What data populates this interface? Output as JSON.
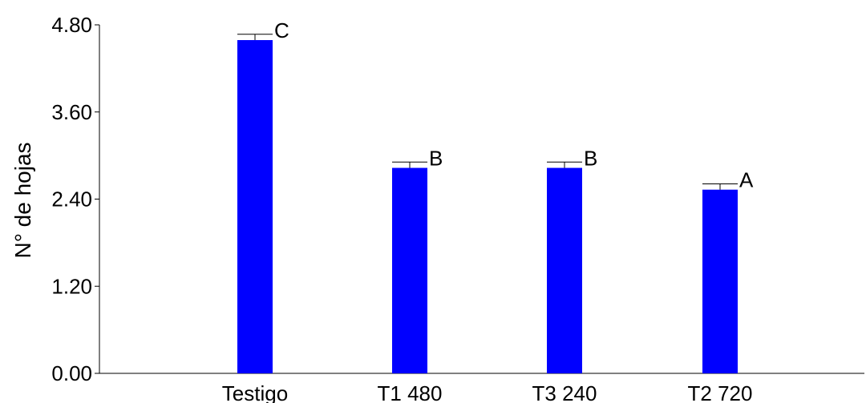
{
  "chart_data": {
    "type": "bar",
    "title": "",
    "xlabel": "",
    "ylabel": "N° de hojas",
    "categories": [
      "Testigo",
      "T1 480",
      "T3 240",
      "T2 720"
    ],
    "values": [
      4.59,
      2.83,
      2.83,
      2.53
    ],
    "error_upper": [
      4.67,
      2.91,
      2.91,
      2.61
    ],
    "significance_letters": [
      "C",
      "B",
      "B",
      "A"
    ],
    "ylim": [
      0,
      4.8
    ],
    "yticks": [
      "0.00",
      "1.20",
      "2.40",
      "3.60",
      "4.80"
    ],
    "bar_color": "#0000ff",
    "grid": false,
    "legend": "none"
  }
}
